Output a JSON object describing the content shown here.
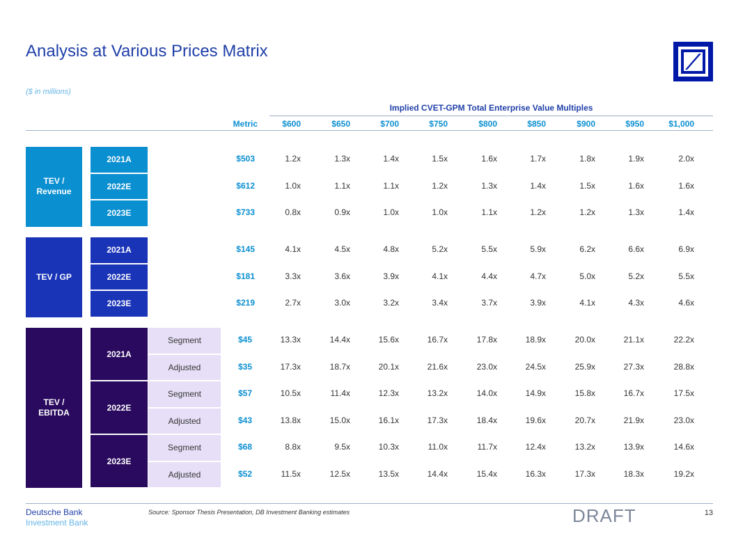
{
  "title": "Analysis at Various Prices Matrix",
  "units_note": "($ in millions)",
  "header": {
    "group_label": "Implied CVET-GPM Total Enterprise Value Multiples",
    "metric_label": "Metric",
    "prices": [
      "$600",
      "$650",
      "$700",
      "$750",
      "$800",
      "$850",
      "$900",
      "$950",
      "$1,000"
    ]
  },
  "groups": [
    {
      "label": "TEV / Revenue",
      "label_lines": [
        "TEV /",
        "Revenue"
      ],
      "rows": [
        {
          "year": "2021A",
          "metric": "$503",
          "values": [
            "1.2x",
            "1.3x",
            "1.4x",
            "1.5x",
            "1.6x",
            "1.7x",
            "1.8x",
            "1.9x",
            "2.0x"
          ]
        },
        {
          "year": "2022E",
          "metric": "$612",
          "values": [
            "1.0x",
            "1.1x",
            "1.1x",
            "1.2x",
            "1.3x",
            "1.4x",
            "1.5x",
            "1.6x",
            "1.6x"
          ]
        },
        {
          "year": "2023E",
          "metric": "$733",
          "values": [
            "0.8x",
            "0.9x",
            "1.0x",
            "1.0x",
            "1.1x",
            "1.2x",
            "1.2x",
            "1.3x",
            "1.4x"
          ]
        }
      ]
    },
    {
      "label": "TEV / GP",
      "label_lines": [
        "TEV / GP"
      ],
      "rows": [
        {
          "year": "2021A",
          "metric": "$145",
          "values": [
            "4.1x",
            "4.5x",
            "4.8x",
            "5.2x",
            "5.5x",
            "5.9x",
            "6.2x",
            "6.6x",
            "6.9x"
          ]
        },
        {
          "year": "2022E",
          "metric": "$181",
          "values": [
            "3.3x",
            "3.6x",
            "3.9x",
            "4.1x",
            "4.4x",
            "4.7x",
            "5.0x",
            "5.2x",
            "5.5x"
          ]
        },
        {
          "year": "2023E",
          "metric": "$219",
          "values": [
            "2.7x",
            "3.0x",
            "3.2x",
            "3.4x",
            "3.7x",
            "3.9x",
            "4.1x",
            "4.3x",
            "4.6x"
          ]
        }
      ]
    },
    {
      "label": "TEV / EBITDA",
      "label_lines": [
        "TEV /",
        "EBITDA"
      ],
      "years": [
        {
          "year": "2021A",
          "rows": [
            {
              "sub": "Segment",
              "metric": "$45",
              "values": [
                "13.3x",
                "14.4x",
                "15.6x",
                "16.7x",
                "17.8x",
                "18.9x",
                "20.0x",
                "21.1x",
                "22.2x"
              ]
            },
            {
              "sub": "Adjusted",
              "metric": "$35",
              "values": [
                "17.3x",
                "18.7x",
                "20.1x",
                "21.6x",
                "23.0x",
                "24.5x",
                "25.9x",
                "27.3x",
                "28.8x"
              ]
            }
          ]
        },
        {
          "year": "2022E",
          "rows": [
            {
              "sub": "Segment",
              "metric": "$57",
              "values": [
                "10.5x",
                "11.4x",
                "12.3x",
                "13.2x",
                "14.0x",
                "14.9x",
                "15.8x",
                "16.7x",
                "17.5x"
              ]
            },
            {
              "sub": "Adjusted",
              "metric": "$43",
              "values": [
                "13.8x",
                "15.0x",
                "16.1x",
                "17.3x",
                "18.4x",
                "19.6x",
                "20.7x",
                "21.9x",
                "23.0x"
              ]
            }
          ]
        },
        {
          "year": "2023E",
          "rows": [
            {
              "sub": "Segment",
              "metric": "$68",
              "values": [
                "8.8x",
                "9.5x",
                "10.3x",
                "11.0x",
                "11.7x",
                "12.4x",
                "13.2x",
                "13.9x",
                "14.6x"
              ]
            },
            {
              "sub": "Adjusted",
              "metric": "$52",
              "values": [
                "11.5x",
                "12.5x",
                "13.5x",
                "14.4x",
                "15.4x",
                "16.3x",
                "17.3x",
                "18.3x",
                "19.2x"
              ]
            }
          ]
        }
      ]
    }
  ],
  "footer": {
    "brand_line1": "Deutsche Bank",
    "brand_line2": "Investment Bank",
    "source": "Source: Sponsor Thesis Presentation, DB Investment Banking estimates",
    "draft": "DRAFT",
    "page_number": "13"
  },
  "colors": {
    "title": "#1f3fa8",
    "accent_light": "#0a8fd1",
    "revenue_box": "#0a8fd1",
    "gp_box": "#1a34b8",
    "ebitda_box": "#2a0a5e",
    "ebitda_sub": "#e6dff7"
  }
}
